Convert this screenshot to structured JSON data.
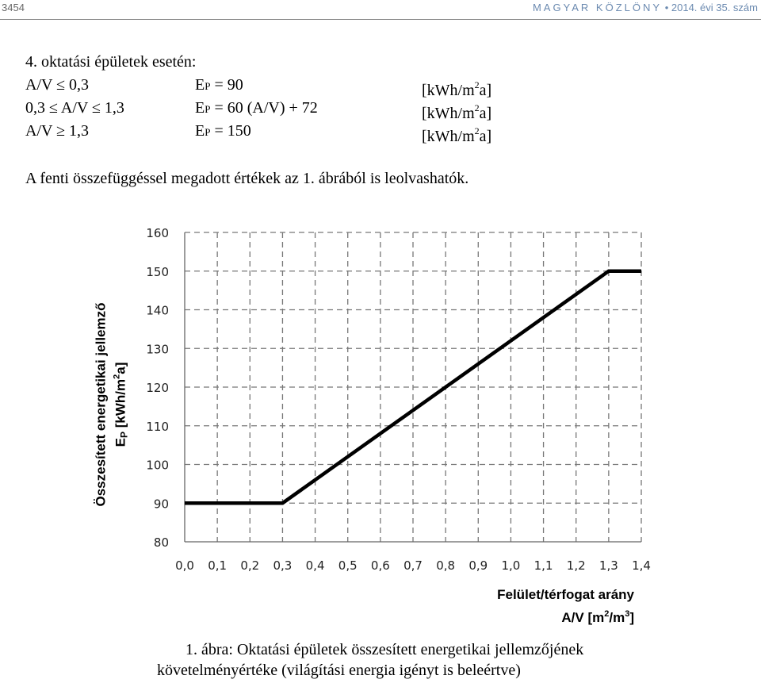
{
  "header": {
    "page_number": "3454",
    "journal_name": "MAGYAR KÖZLÖNY",
    "bullet": "•",
    "issue": "2014. évi 35. szám"
  },
  "formulas": {
    "title": "4. oktatási épületek esetén:",
    "rows": [
      {
        "cond": "A/V ≤ 0,3",
        "lhs": "E",
        "sub": "P",
        "rhs": " = 90",
        "unit_a": "[kWh/m",
        "unit_sup": "2",
        "unit_b": "a]"
      },
      {
        "cond": "0,3 ≤ A/V ≤ 1,3",
        "lhs": "E",
        "sub": "P",
        "rhs": " = 60 (A/V) + 72",
        "unit_a": "[kWh/m",
        "unit_sup": "2",
        "unit_b": "a]"
      },
      {
        "cond": "A/V ≥ 1,3",
        "lhs": "E",
        "sub": "P",
        "rhs": " = 150",
        "unit_a": "[kWh/m",
        "unit_sup": "2",
        "unit_b": "a]"
      }
    ]
  },
  "intro_text": "A fenti összefüggéssel megadott értékek az 1. ábrából is leolvashatók.",
  "chart_data": {
    "type": "line",
    "ylabel_line1": "Összesített energetikai jellemző",
    "ylabel_line2_a": "E",
    "ylabel_line2_sub": "P",
    "ylabel_line2_b": " [kWh/m",
    "ylabel_line2_sup": "2",
    "ylabel_line2_c": "a]",
    "xlabel_line1": "Felület/térfogat arány",
    "xlabel_line2_a": "A/V [m",
    "xlabel_line2_sup1": "2",
    "xlabel_line2_b": "/m",
    "xlabel_line2_sup2": "3",
    "xlabel_line2_c": "]",
    "xlim": [
      0,
      1.4
    ],
    "ylim": [
      80,
      160
    ],
    "x_ticks": [
      "0,0",
      "0,1",
      "0,2",
      "0,3",
      "0,4",
      "0,5",
      "0,6",
      "0,7",
      "0,8",
      "0,9",
      "1,0",
      "1,1",
      "1,2",
      "1,3",
      "1,4"
    ],
    "y_ticks": [
      "80",
      "90",
      "100",
      "110",
      "120",
      "130",
      "140",
      "150",
      "160"
    ],
    "grid": "dashed",
    "series": [
      {
        "x": [
          0.0,
          0.3,
          1.3,
          1.4
        ],
        "y": [
          90,
          90,
          150,
          150
        ]
      }
    ]
  },
  "caption": {
    "line1": "1. ábra: Oktatási épületek összesített energetikai jellemzőjének",
    "line2": "követelményértéke (világítási energia igényt is beleértve)"
  }
}
